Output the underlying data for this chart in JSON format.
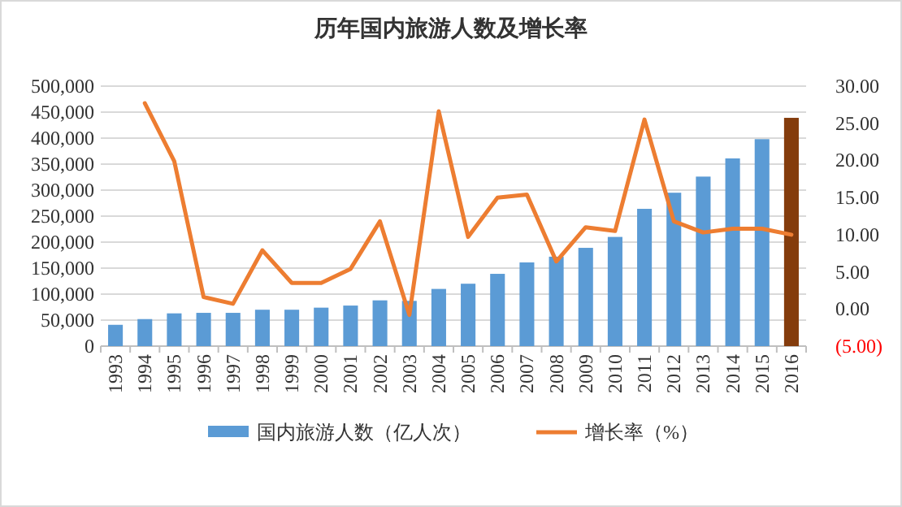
{
  "chart_data": {
    "type": "bar",
    "title": "历年国内旅游人数及增长率",
    "categories": [
      "1993",
      "1994",
      "1995",
      "1996",
      "1997",
      "1998",
      "1999",
      "2000",
      "2001",
      "2002",
      "2003",
      "2004",
      "2005",
      "2006",
      "2007",
      "2008",
      "2009",
      "2010",
      "2011",
      "2012",
      "2013",
      "2014",
      "2015",
      "2016"
    ],
    "series": [
      {
        "name": "国内旅游人数（亿人次）",
        "color": "#5b9bd5",
        "colors": [
          "#5b9bd5",
          "#5b9bd5",
          "#5b9bd5",
          "#5b9bd5",
          "#5b9bd5",
          "#5b9bd5",
          "#5b9bd5",
          "#5b9bd5",
          "#5b9bd5",
          "#5b9bd5",
          "#5b9bd5",
          "#5b9bd5",
          "#5b9bd5",
          "#5b9bd5",
          "#5b9bd5",
          "#5b9bd5",
          "#5b9bd5",
          "#5b9bd5",
          "#5b9bd5",
          "#5b9bd5",
          "#5b9bd5",
          "#5b9bd5",
          "#5b9bd5",
          "#843c0c"
        ],
        "values": [
          41000,
          52000,
          63000,
          64000,
          64000,
          70000,
          70000,
          74000,
          78000,
          88000,
          87000,
          110000,
          120000,
          139000,
          161000,
          172000,
          189000,
          210000,
          264000,
          295000,
          326000,
          361000,
          398000,
          439000
        ]
      },
      {
        "name": "增长率（%）",
        "type": "line",
        "axis": "y2",
        "color": "#ed7d31",
        "values": [
          null,
          27.7,
          19.9,
          1.6,
          0.7,
          7.9,
          3.5,
          3.5,
          5.4,
          11.8,
          -0.8,
          26.6,
          9.7,
          15.0,
          15.4,
          6.4,
          11.0,
          10.5,
          25.5,
          11.8,
          10.3,
          10.8,
          10.8,
          10.0
        ]
      }
    ],
    "ylim": [
      0,
      500000
    ],
    "yticks": [
      {
        "value": 0,
        "label": "0"
      },
      {
        "value": 50000,
        "label": "50,000"
      },
      {
        "value": 100000,
        "label": "100,000"
      },
      {
        "value": 150000,
        "label": "150,000"
      },
      {
        "value": 200000,
        "label": "200,000"
      },
      {
        "value": 250000,
        "label": "250,000"
      },
      {
        "value": 300000,
        "label": "300,000"
      },
      {
        "value": 350000,
        "label": "350,000"
      },
      {
        "value": 400000,
        "label": "400,000"
      },
      {
        "value": 450000,
        "label": "450,000"
      },
      {
        "value": 500000,
        "label": "500,000"
      }
    ],
    "y2lim": [
      -5,
      30
    ],
    "y2ticks": [
      {
        "value": -5,
        "label": "(5.00)"
      },
      {
        "value": 0,
        "label": "0.00"
      },
      {
        "value": 5,
        "label": "5.00"
      },
      {
        "value": 10,
        "label": "10.00"
      },
      {
        "value": 15,
        "label": "15.00"
      },
      {
        "value": 20,
        "label": "20.00"
      },
      {
        "value": 25,
        "label": "25.00"
      },
      {
        "value": 30,
        "label": "30.00"
      }
    ],
    "grid": "y",
    "legend": "bottom",
    "marker": "none",
    "line_style": "solid"
  }
}
